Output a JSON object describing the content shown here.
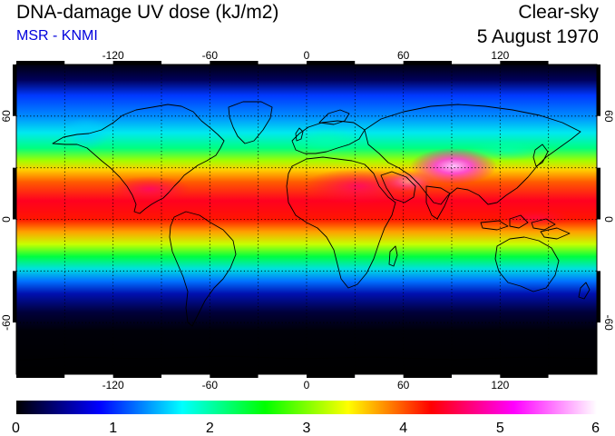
{
  "header": {
    "title": "DNA-damage UV dose (kJ/m2)",
    "source": "MSR - KNMI",
    "sky_condition": "Clear-sky",
    "date": "5 August 1970"
  },
  "map": {
    "projection": "equirectangular",
    "lon_range": [
      -180,
      180
    ],
    "lat_range": [
      -90,
      90
    ],
    "grid": "dotted",
    "lon_ticks": [
      "-120",
      "-60",
      "0",
      "60",
      "120"
    ],
    "lon_tick_values": [
      -120,
      -60,
      0,
      60,
      120
    ],
    "lat_ticks": [
      "60",
      "0",
      "-60"
    ],
    "lat_tick_values": [
      60,
      0,
      -60
    ]
  },
  "colorbar": {
    "min": 0,
    "max": 6,
    "labels": [
      "0",
      "1",
      "2",
      "3",
      "4",
      "5",
      "6"
    ],
    "colors": [
      "#000000",
      "#0000ff",
      "#00ffff",
      "#00ff00",
      "#ffff00",
      "#ff0000",
      "#ff00ff",
      "#ffffff"
    ]
  },
  "colors": {
    "title": "#000000",
    "source": "#0000dd"
  }
}
